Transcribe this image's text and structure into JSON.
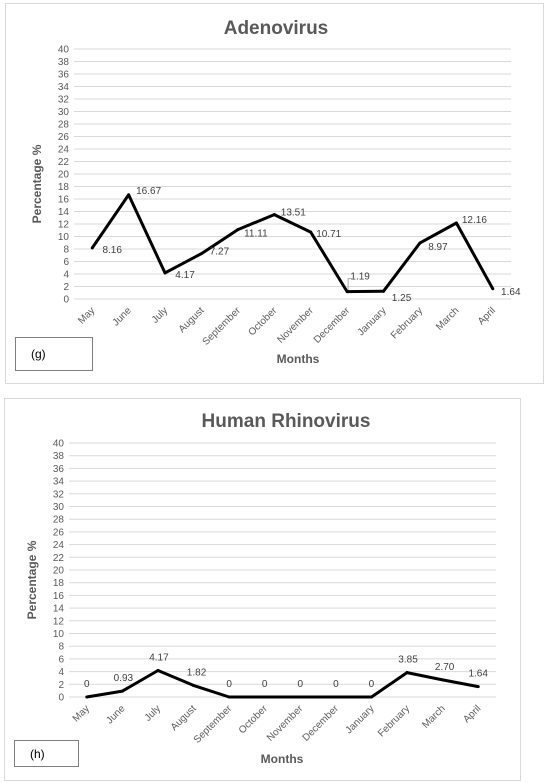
{
  "chart_data": [
    {
      "type": "line",
      "title": "Adenovirus",
      "xlabel": "Months",
      "ylabel": "Percentage %",
      "ylim": [
        0,
        40
      ],
      "ytick_step": 2,
      "grid": true,
      "panel_label": "(g)",
      "categories": [
        "May",
        "June",
        "July",
        "August",
        "September",
        "October",
        "November",
        "December",
        "January",
        "February",
        "March",
        "April"
      ],
      "values": [
        8.16,
        16.67,
        4.17,
        7.27,
        11.11,
        13.51,
        10.71,
        1.19,
        1.25,
        8.97,
        12.16,
        1.64
      ],
      "data_labels": [
        "8.16",
        "16.67",
        "4.17",
        "7.27",
        "11.11",
        "13.51",
        "10.71",
        "1.19",
        "1.25",
        "8.97",
        "12.16",
        "1.64"
      ]
    },
    {
      "type": "line",
      "title": "Human Rhinovirus",
      "xlabel": "Months",
      "ylabel": "Percentage %",
      "ylim": [
        0,
        40
      ],
      "ytick_step": 2,
      "grid": true,
      "panel_label": "(h)",
      "categories": [
        "May",
        "June",
        "July",
        "August",
        "September",
        "October",
        "November",
        "December",
        "January",
        "February",
        "March",
        "April"
      ],
      "values": [
        0,
        0.93,
        4.17,
        1.82,
        0,
        0,
        0,
        0,
        0,
        3.85,
        2.7,
        1.64
      ],
      "data_labels": [
        "0",
        "0.93",
        "4.17",
        "1.82",
        "0",
        "0",
        "0",
        "0",
        "0",
        "3.85",
        "2.70",
        "1.64"
      ]
    }
  ]
}
